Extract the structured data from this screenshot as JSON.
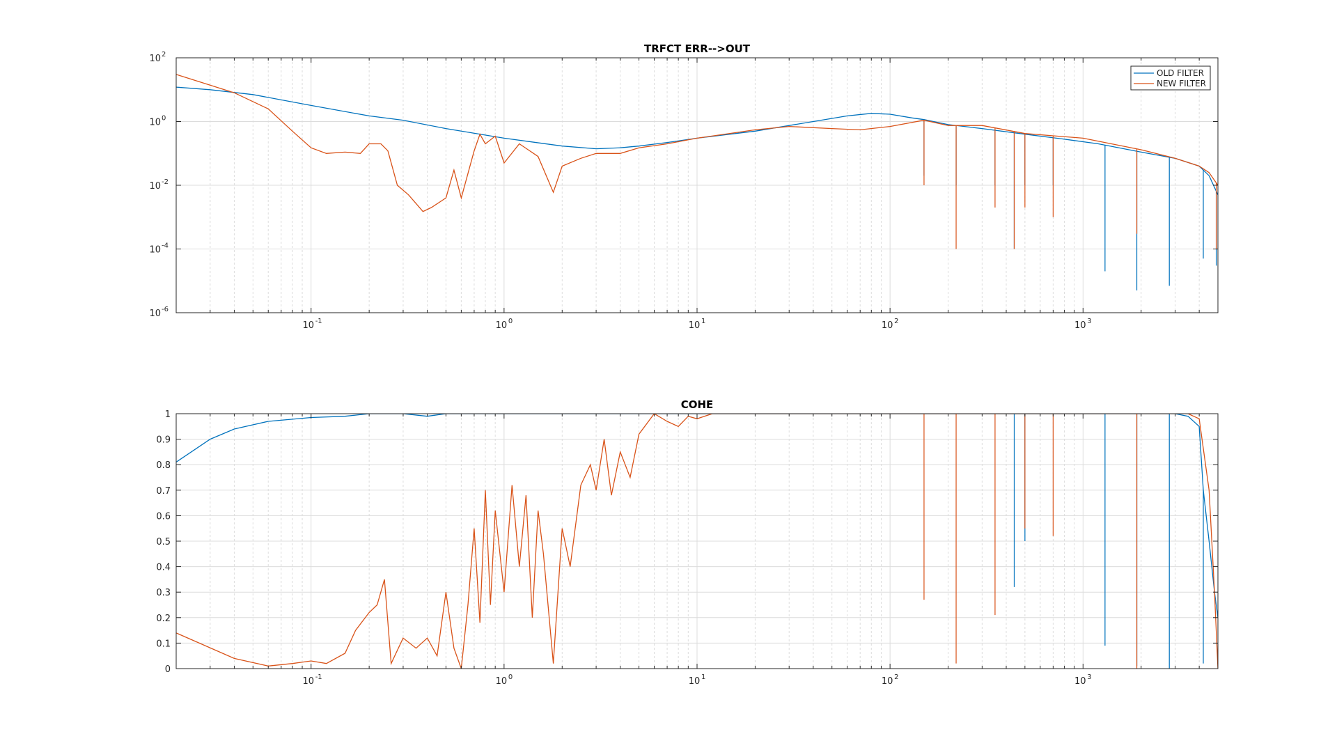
{
  "colors": {
    "old_filter": "#0072BD",
    "new_filter": "#D95319",
    "axes": "#262626",
    "grid": "#dcdcdc",
    "background": "#ffffff"
  },
  "chart_data": [
    {
      "type": "line",
      "title": "TRFCT ERR-->OUT",
      "xscale": "log",
      "yscale": "log",
      "xlim": [
        0.02,
        5000
      ],
      "ylim": [
        1e-06,
        100
      ],
      "grid": true,
      "minor_grid": true,
      "legend": "top-right",
      "xticks": [
        {
          "value": 0.1,
          "base": "10",
          "exp": "-1"
        },
        {
          "value": 1,
          "base": "10",
          "exp": "0"
        },
        {
          "value": 10,
          "base": "10",
          "exp": "1"
        },
        {
          "value": 100,
          "base": "10",
          "exp": "2"
        },
        {
          "value": 1000,
          "base": "10",
          "exp": "3"
        }
      ],
      "yticks": [
        {
          "value": 1e-06,
          "base": "10",
          "exp": "-6"
        },
        {
          "value": 0.0001,
          "base": "10",
          "exp": "-4"
        },
        {
          "value": 0.01,
          "base": "10",
          "exp": "-2"
        },
        {
          "value": 1,
          "base": "10",
          "exp": "0"
        },
        {
          "value": 100,
          "base": "10",
          "exp": "2"
        }
      ],
      "series": [
        {
          "name": "OLD FILTER",
          "color": "#0072BD",
          "points": [
            [
              0.02,
              12
            ],
            [
              0.03,
              10
            ],
            [
              0.05,
              7
            ],
            [
              0.1,
              3.2
            ],
            [
              0.2,
              1.5
            ],
            [
              0.3,
              1.1
            ],
            [
              0.5,
              0.6
            ],
            [
              1,
              0.3
            ],
            [
              2,
              0.17
            ],
            [
              3,
              0.14
            ],
            [
              4,
              0.15
            ],
            [
              5,
              0.17
            ],
            [
              7,
              0.22
            ],
            [
              10,
              0.3
            ],
            [
              20,
              0.5
            ],
            [
              40,
              1
            ],
            [
              60,
              1.5
            ],
            [
              80,
              1.8
            ],
            [
              100,
              1.7
            ],
            [
              130,
              1.3
            ],
            [
              150,
              1.15
            ],
            [
              200,
              0.8
            ],
            [
              300,
              0.6
            ],
            [
              500,
              0.4
            ],
            [
              800,
              0.28
            ],
            [
              1200,
              0.2
            ],
            [
              2000,
              0.11
            ],
            [
              3000,
              0.07
            ],
            [
              4000,
              0.04
            ],
            [
              4500,
              0.02
            ],
            [
              5000,
              0.005
            ]
          ],
          "notches": [
            [
              150,
              0.02
            ],
            [
              220,
              0.01
            ],
            [
              350,
              0.01
            ],
            [
              440,
              0.0001
            ],
            [
              500,
              0.01
            ],
            [
              700,
              0.01
            ],
            [
              1300,
              2e-05
            ],
            [
              1900,
              5e-06
            ],
            [
              2800,
              7e-06
            ],
            [
              4200,
              5e-05
            ],
            [
              4900,
              3e-05
            ]
          ]
        },
        {
          "name": "NEW FILTER",
          "color": "#D95319",
          "points": [
            [
              0.02,
              30
            ],
            [
              0.04,
              8
            ],
            [
              0.06,
              2.5
            ],
            [
              0.08,
              0.5
            ],
            [
              0.1,
              0.15
            ],
            [
              0.12,
              0.1
            ],
            [
              0.15,
              0.11
            ],
            [
              0.18,
              0.1
            ],
            [
              0.2,
              0.2
            ],
            [
              0.23,
              0.2
            ],
            [
              0.25,
              0.12
            ],
            [
              0.28,
              0.01
            ],
            [
              0.32,
              0.005
            ],
            [
              0.38,
              0.0015
            ],
            [
              0.42,
              0.002
            ],
            [
              0.5,
              0.004
            ],
            [
              0.55,
              0.03
            ],
            [
              0.6,
              0.004
            ],
            [
              0.7,
              0.12
            ],
            [
              0.75,
              0.4
            ],
            [
              0.8,
              0.2
            ],
            [
              0.9,
              0.35
            ],
            [
              1,
              0.05
            ],
            [
              1.2,
              0.2
            ],
            [
              1.5,
              0.08
            ],
            [
              1.8,
              0.006
            ],
            [
              2,
              0.04
            ],
            [
              2.5,
              0.07
            ],
            [
              3,
              0.1
            ],
            [
              3.5,
              0.1
            ],
            [
              4,
              0.1
            ],
            [
              5,
              0.15
            ],
            [
              7,
              0.2
            ],
            [
              10,
              0.3
            ],
            [
              20,
              0.55
            ],
            [
              30,
              0.7
            ],
            [
              50,
              0.6
            ],
            [
              70,
              0.55
            ],
            [
              100,
              0.7
            ],
            [
              150,
              1.1
            ],
            [
              200,
              0.75
            ],
            [
              300,
              0.75
            ],
            [
              500,
              0.42
            ],
            [
              1000,
              0.3
            ],
            [
              2000,
              0.13
            ],
            [
              3000,
              0.07
            ],
            [
              4000,
              0.04
            ],
            [
              4500,
              0.025
            ],
            [
              5000,
              0.01
            ]
          ],
          "notches": [
            [
              150,
              0.01
            ],
            [
              220,
              0.0001
            ],
            [
              350,
              0.002
            ],
            [
              440,
              0.0001
            ],
            [
              500,
              0.002
            ],
            [
              700,
              0.001
            ],
            [
              1900,
              0.0003
            ],
            [
              4900,
              0.0001
            ]
          ]
        }
      ]
    },
    {
      "type": "line",
      "title": "COHE",
      "xscale": "log",
      "yscale": "linear",
      "xlim": [
        0.02,
        5000
      ],
      "ylim": [
        0,
        1
      ],
      "grid": true,
      "minor_grid": true,
      "legend": "none",
      "xticks": [
        {
          "value": 0.1,
          "base": "10",
          "exp": "-1"
        },
        {
          "value": 1,
          "base": "10",
          "exp": "0"
        },
        {
          "value": 10,
          "base": "10",
          "exp": "1"
        },
        {
          "value": 100,
          "base": "10",
          "exp": "2"
        },
        {
          "value": 1000,
          "base": "10",
          "exp": "3"
        }
      ],
      "yticks": [
        {
          "value": 0,
          "label": "0"
        },
        {
          "value": 0.1,
          "label": "0.1"
        },
        {
          "value": 0.2,
          "label": "0.2"
        },
        {
          "value": 0.3,
          "label": "0.3"
        },
        {
          "value": 0.4,
          "label": "0.4"
        },
        {
          "value": 0.5,
          "label": "0.5"
        },
        {
          "value": 0.6,
          "label": "0.6"
        },
        {
          "value": 0.7,
          "label": "0.7"
        },
        {
          "value": 0.8,
          "label": "0.8"
        },
        {
          "value": 0.9,
          "label": "0.9"
        },
        {
          "value": 1,
          "label": "1"
        }
      ],
      "series": [
        {
          "name": "OLD FILTER",
          "color": "#0072BD",
          "points": [
            [
              0.02,
              0.81
            ],
            [
              0.03,
              0.9
            ],
            [
              0.04,
              0.94
            ],
            [
              0.06,
              0.97
            ],
            [
              0.1,
              0.985
            ],
            [
              0.15,
              0.99
            ],
            [
              0.2,
              1
            ],
            [
              0.3,
              1
            ],
            [
              0.4,
              0.99
            ],
            [
              0.5,
              1
            ],
            [
              1,
              1
            ],
            [
              10,
              1
            ],
            [
              100,
              1
            ],
            [
              1000,
              1
            ],
            [
              3000,
              1
            ],
            [
              3500,
              0.99
            ],
            [
              4000,
              0.95
            ],
            [
              4200,
              0.7
            ],
            [
              4500,
              0.5
            ],
            [
              4800,
              0.3
            ],
            [
              5000,
              0.2
            ]
          ],
          "notches": [
            [
              440,
              0.32
            ],
            [
              500,
              0.5
            ],
            [
              1300,
              0.09
            ],
            [
              1900,
              0.01
            ],
            [
              2800,
              0.0
            ],
            [
              4200,
              0.02
            ]
          ]
        },
        {
          "name": "NEW FILTER",
          "color": "#D95319",
          "points": [
            [
              0.02,
              0.14
            ],
            [
              0.04,
              0.04
            ],
            [
              0.06,
              0.01
            ],
            [
              0.08,
              0.02
            ],
            [
              0.1,
              0.03
            ],
            [
              0.12,
              0.02
            ],
            [
              0.15,
              0.06
            ],
            [
              0.17,
              0.15
            ],
            [
              0.2,
              0.22
            ],
            [
              0.22,
              0.25
            ],
            [
              0.24,
              0.35
            ],
            [
              0.26,
              0.02
            ],
            [
              0.3,
              0.12
            ],
            [
              0.35,
              0.08
            ],
            [
              0.4,
              0.12
            ],
            [
              0.45,
              0.05
            ],
            [
              0.5,
              0.3
            ],
            [
              0.55,
              0.08
            ],
            [
              0.6,
              0.0
            ],
            [
              0.65,
              0.25
            ],
            [
              0.7,
              0.55
            ],
            [
              0.75,
              0.18
            ],
            [
              0.8,
              0.7
            ],
            [
              0.85,
              0.25
            ],
            [
              0.9,
              0.62
            ],
            [
              1,
              0.3
            ],
            [
              1.1,
              0.72
            ],
            [
              1.2,
              0.4
            ],
            [
              1.3,
              0.68
            ],
            [
              1.4,
              0.2
            ],
            [
              1.5,
              0.62
            ],
            [
              1.6,
              0.45
            ],
            [
              1.8,
              0.02
            ],
            [
              2,
              0.55
            ],
            [
              2.2,
              0.4
            ],
            [
              2.5,
              0.72
            ],
            [
              2.8,
              0.8
            ],
            [
              3,
              0.7
            ],
            [
              3.3,
              0.9
            ],
            [
              3.6,
              0.68
            ],
            [
              4,
              0.85
            ],
            [
              4.5,
              0.75
            ],
            [
              5,
              0.92
            ],
            [
              6,
              1
            ],
            [
              7,
              0.97
            ],
            [
              8,
              0.95
            ],
            [
              9,
              0.99
            ],
            [
              10,
              0.98
            ],
            [
              12,
              1
            ],
            [
              20,
              1
            ],
            [
              100,
              1
            ],
            [
              1000,
              1
            ],
            [
              3500,
              1
            ],
            [
              4000,
              0.98
            ],
            [
              4500,
              0.7
            ],
            [
              4800,
              0.3
            ],
            [
              5000,
              0.0
            ]
          ],
          "notches": [
            [
              150,
              0.27
            ],
            [
              220,
              0.02
            ],
            [
              350,
              0.21
            ],
            [
              500,
              0.55
            ],
            [
              700,
              0.52
            ],
            [
              1900,
              0.0
            ]
          ]
        }
      ]
    }
  ]
}
